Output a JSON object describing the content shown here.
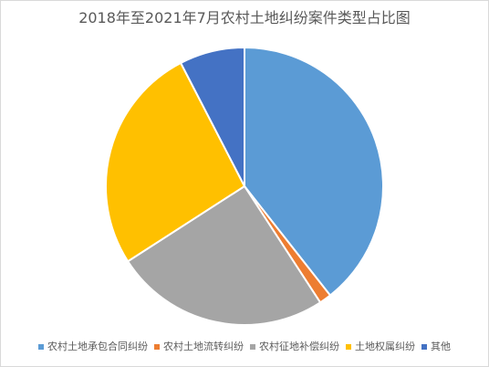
{
  "chart_data": {
    "type": "pie",
    "title": "2018年至2021年7月农村土地纠纷案件类型占比图",
    "categories": [
      "农村土地承包合同纠纷",
      "农村土地流转纠纷",
      "农村征地补偿纠纷",
      "土地权属纠纷",
      "其他"
    ],
    "values": [
      39.4,
      1.4,
      25.1,
      26.5,
      7.6
    ],
    "colors": [
      "#5B9BD5",
      "#ED7D31",
      "#A5A5A5",
      "#FFC000",
      "#4472C4"
    ],
    "start_angle_deg": 0,
    "direction": "clockwise",
    "legend_position": "bottom"
  }
}
